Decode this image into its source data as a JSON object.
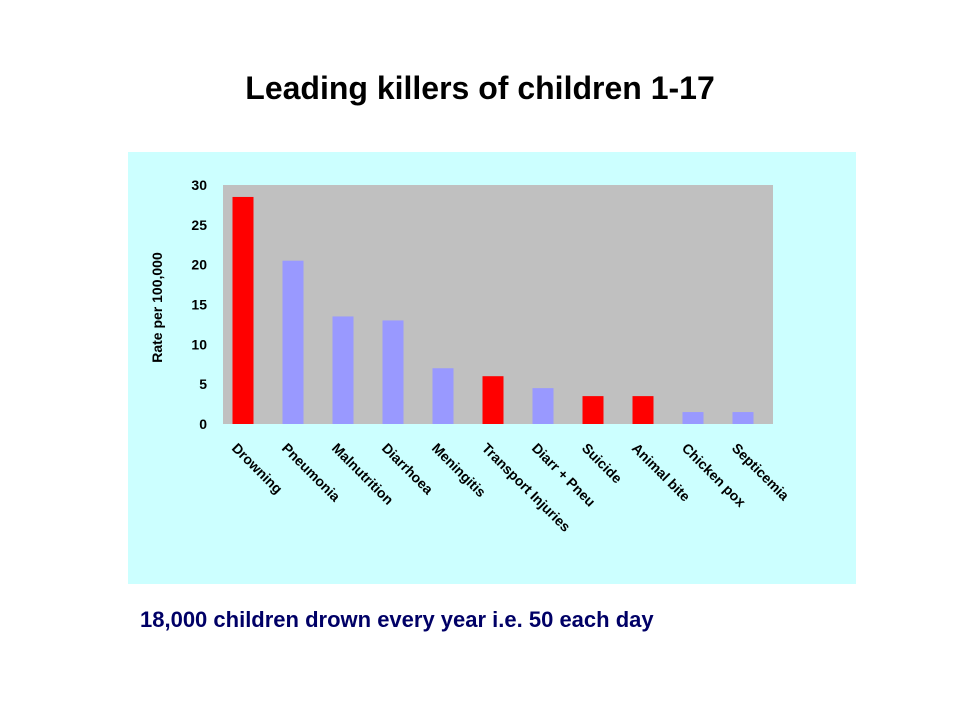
{
  "title": "Leading killers of children 1-17",
  "caption": "18,000 children drown every year i.e. 50 each day",
  "colors": {
    "panel_background": "#ccffff",
    "plot_background": "#c0c0c0",
    "highlight_bar": "#ff0000",
    "normal_bar": "#9999ff",
    "caption_text": "#000066"
  },
  "chart_data": {
    "type": "bar",
    "title": "Leading killers of children 1-17",
    "xlabel": "",
    "ylabel": "Rate per 100,000",
    "ylim": [
      0,
      30
    ],
    "yticks": [
      0,
      5,
      10,
      15,
      20,
      25,
      30
    ],
    "grid": false,
    "legend": "none",
    "categories": [
      "Drowning",
      "Pneumonia",
      "Malnutrition",
      "Diarrhoea",
      "Meningitis",
      "Transport Injuries",
      "Diarr + Pneu",
      "Suicide",
      "Animal bite",
      "Chicken pox",
      "Septicemia"
    ],
    "values": [
      28.5,
      20.5,
      13.5,
      13,
      7,
      6,
      4.5,
      3.5,
      3.5,
      1.5,
      1.5
    ],
    "highlighted": [
      true,
      false,
      false,
      false,
      false,
      true,
      false,
      true,
      true,
      false,
      false
    ]
  }
}
